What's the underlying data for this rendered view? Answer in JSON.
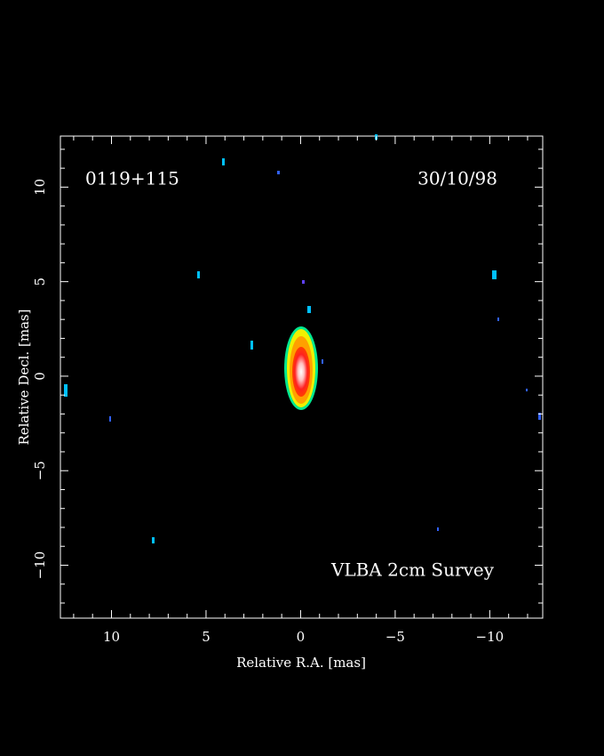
{
  "chart_data": {
    "type": "image",
    "annotations": [
      "0119+115",
      "30/10/98",
      "VLBA 2cm Survey"
    ],
    "xlabel": "Relative R.A. [mas]",
    "ylabel": "Relative Decl. [mas]",
    "xlim": [
      12.7,
      -12.8
    ],
    "ylim": [
      -12.8,
      12.7
    ],
    "xticks": [
      10,
      5,
      0,
      {
        "value": -5,
        "label": "−5"
      },
      {
        "value": -10,
        "label": "−10"
      }
    ],
    "yticks": [
      {
        "value": -10,
        "label": "−10"
      },
      {
        "value": -5,
        "label": "−5"
      },
      0,
      5,
      10
    ],
    "xminor": [
      12,
      11,
      9,
      8,
      7,
      6,
      4,
      3,
      2,
      1,
      -1,
      -2,
      -3,
      -4,
      -6,
      -7,
      -8,
      -9,
      -11,
      -12
    ],
    "yminor": [
      -12,
      -11,
      -9,
      -8,
      -7,
      -6,
      -4,
      -3,
      -2,
      -1,
      1,
      2,
      3,
      4,
      6,
      7,
      8,
      9,
      11,
      12
    ]
  }
}
